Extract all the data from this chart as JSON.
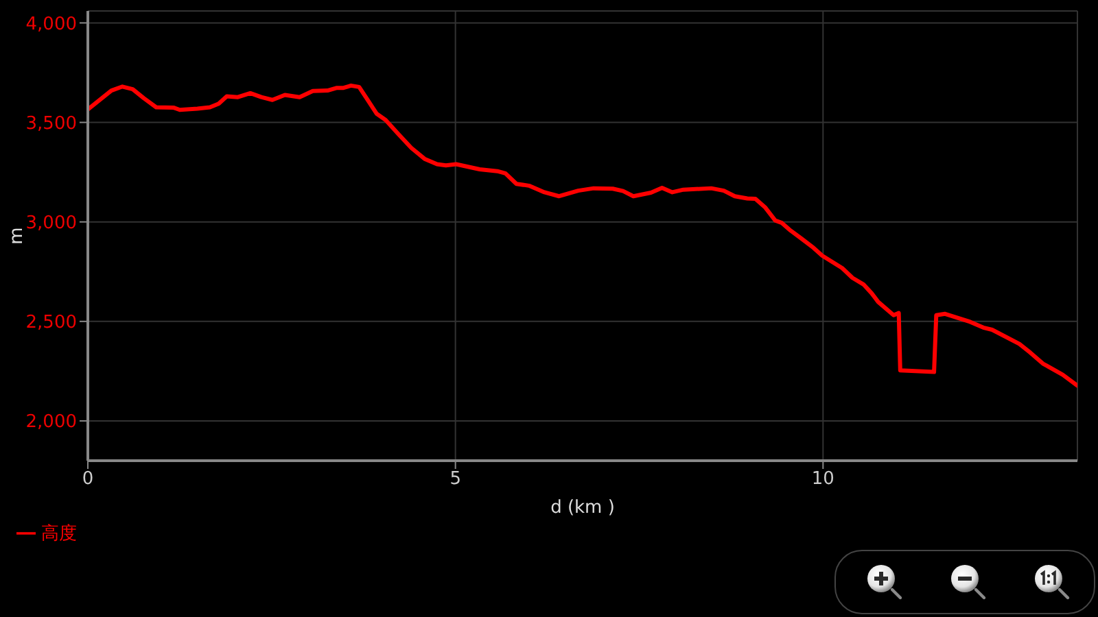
{
  "chart_data": {
    "type": "line",
    "xlabel": "d (km )",
    "ylabel": "m",
    "x": [
      0,
      0.32,
      0.47,
      0.61,
      0.76,
      0.93,
      1.17,
      1.25,
      1.49,
      1.66,
      1.78,
      1.89,
      2.04,
      2.21,
      2.36,
      2.51,
      2.68,
      2.88,
      3.06,
      3.26,
      3.38,
      3.47,
      3.58,
      3.69,
      3.79,
      3.93,
      4.05,
      4.23,
      4.4,
      4.58,
      4.75,
      4.87,
      5.01,
      5.33,
      5.57,
      5.68,
      5.83,
      6.0,
      6.21,
      6.41,
      6.67,
      6.88,
      7.14,
      7.28,
      7.42,
      7.66,
      7.81,
      7.95,
      8.1,
      8.48,
      8.65,
      8.8,
      8.97,
      9.08,
      9.21,
      9.35,
      9.44,
      9.56,
      9.7,
      9.87,
      9.99,
      10.26,
      10.4,
      10.55,
      10.66,
      10.75,
      10.96,
      11.03,
      11.05,
      11.51,
      11.54,
      11.66,
      12.0,
      12.18,
      12.3,
      12.67,
      12.82,
      12.99,
      13.26,
      13.46
    ],
    "series": [
      {
        "name": "高度",
        "color": "#ff0000",
        "values": [
          3565,
          3660,
          3680,
          3667,
          3622,
          3576,
          3574,
          3563,
          3569,
          3576,
          3594,
          3631,
          3627,
          3647,
          3627,
          3613,
          3638,
          3627,
          3658,
          3660,
          3673,
          3673,
          3685,
          3678,
          3622,
          3543,
          3512,
          3439,
          3372,
          3317,
          3290,
          3284,
          3290,
          3264,
          3255,
          3244,
          3191,
          3182,
          3149,
          3129,
          3157,
          3169,
          3167,
          3155,
          3129,
          3147,
          3171,
          3149,
          3162,
          3169,
          3157,
          3129,
          3118,
          3116,
          3074,
          3007,
          2995,
          2956,
          2918,
          2870,
          2830,
          2768,
          2719,
          2686,
          2642,
          2598,
          2531,
          2542,
          2254,
          2246,
          2531,
          2538,
          2498,
          2469,
          2458,
          2387,
          2343,
          2288,
          2232,
          2177
        ]
      }
    ],
    "xlim": [
      0,
      13.46
    ],
    "ylim": [
      1800,
      4060
    ],
    "xticks": [
      0,
      5,
      10
    ],
    "yticks": [
      {
        "value": 2000,
        "label": "2,000"
      },
      {
        "value": 2500,
        "label": "2,500"
      },
      {
        "value": 3000,
        "label": "3,000"
      },
      {
        "value": 3500,
        "label": "3,500"
      },
      {
        "value": 4000,
        "label": "4,000"
      }
    ],
    "grid": true,
    "legend": "bottom left"
  }
}
